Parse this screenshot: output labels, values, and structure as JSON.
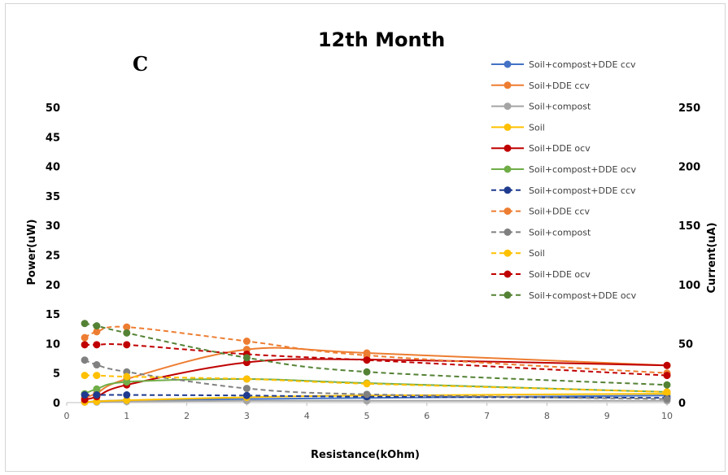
{
  "chart_data": {
    "type": "line",
    "title": "12th Month",
    "panel_label": "C",
    "xlabel": "Resistance(kOhm)",
    "ylabel": "Power(uW)",
    "y2label": "Current(uA)",
    "xlim": [
      0,
      10
    ],
    "ylim": [
      0,
      50
    ],
    "y2lim": [
      0,
      250
    ],
    "x_ticks": [
      "0",
      "1",
      "2",
      "3",
      "4",
      "5",
      "6",
      "7",
      "8",
      "9",
      "10"
    ],
    "y_ticks": [
      "0",
      "5",
      "10",
      "15",
      "20",
      "25",
      "30",
      "35",
      "40",
      "45",
      "50"
    ],
    "y2_ticks": [
      "0",
      "50",
      "100",
      "150",
      "200",
      "250"
    ],
    "grid": false,
    "legend_position": "right",
    "x": [
      0.3,
      0.5,
      1,
      3,
      5,
      10
    ],
    "series": [
      {
        "name": "Soil+compost+DDE ccv",
        "color": "#4472C4",
        "dash": false,
        "axis": "left",
        "values": [
          0.1,
          0.2,
          0.4,
          0.6,
          0.8,
          1.2
        ]
      },
      {
        "name": "Soil+DDE ccv",
        "color": "#ED7D31",
        "dash": false,
        "axis": "left",
        "values": [
          0.8,
          1.6,
          4.0,
          9.0,
          8.4,
          6.3
        ]
      },
      {
        "name": "Soil+compost",
        "color": "#A5A5A5",
        "dash": false,
        "axis": "left",
        "values": [
          0.1,
          0.1,
          0.2,
          0.3,
          0.3,
          0.3
        ]
      },
      {
        "name": "Soil",
        "color": "#FFC000",
        "dash": false,
        "axis": "left",
        "values": [
          0.1,
          0.2,
          0.4,
          0.9,
          1.2,
          1.5
        ]
      },
      {
        "name": "Soil+DDE ocv",
        "color": "#C00000",
        "dash": false,
        "axis": "left",
        "values": [
          0.5,
          1.0,
          3.0,
          6.8,
          7.3,
          6.3
        ]
      },
      {
        "name": "Soil+compost+DDE ocv",
        "color": "#70AD47",
        "dash": false,
        "axis": "left",
        "values": [
          1.5,
          2.3,
          3.5,
          4.0,
          3.3,
          1.8
        ]
      },
      {
        "name": "Soil+compost+DDE ccv",
        "color": "#1F3B8F",
        "dash": true,
        "axis": "right",
        "values": [
          6.5,
          6.5,
          6.5,
          6,
          5,
          4
        ]
      },
      {
        "name": "Soil+DDE ccv",
        "color": "#ED7D31",
        "dash": true,
        "axis": "right",
        "values": [
          55,
          60,
          64,
          52,
          40,
          25
        ]
      },
      {
        "name": "Soil+compost",
        "color": "#808080",
        "dash": true,
        "axis": "right",
        "values": [
          36,
          32,
          26,
          12,
          7,
          3
        ]
      },
      {
        "name": "Soil",
        "color": "#FFC000",
        "dash": true,
        "axis": "right",
        "values": [
          23,
          23,
          22,
          20,
          16,
          9
        ]
      },
      {
        "name": "Soil+DDE ocv",
        "color": "#C00000",
        "dash": true,
        "axis": "right",
        "values": [
          49,
          49,
          49,
          41,
          36,
          23
        ]
      },
      {
        "name": "Soil+compost+DDE ocv",
        "color": "#548235",
        "dash": true,
        "axis": "right",
        "values": [
          67,
          65,
          59,
          38,
          26,
          15
        ]
      }
    ]
  }
}
